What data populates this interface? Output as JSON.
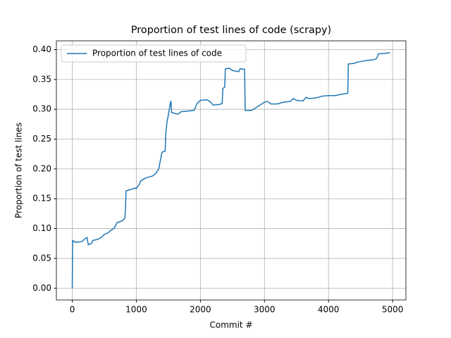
{
  "chart_data": {
    "type": "line",
    "title": "Proportion of test lines of code (scrapy)",
    "xlabel": "Commit #",
    "ylabel": "Proportion of test lines",
    "x": [
      0,
      5,
      50,
      150,
      200,
      230,
      250,
      300,
      320,
      400,
      450,
      500,
      560,
      600,
      650,
      700,
      780,
      820,
      830,
      840,
      900,
      980,
      1000,
      1050,
      1070,
      1150,
      1250,
      1300,
      1350,
      1400,
      1450,
      1460,
      1480,
      1500,
      1530,
      1540,
      1550,
      1600,
      1650,
      1700,
      1800,
      1900,
      1950,
      2000,
      2100,
      2150,
      2200,
      2300,
      2340,
      2350,
      2380,
      2390,
      2450,
      2500,
      2600,
      2620,
      2690,
      2700,
      2800,
      2900,
      3000,
      3050,
      3100,
      3200,
      3300,
      3400,
      3450,
      3500,
      3600,
      3650,
      3700,
      3800,
      3900,
      4000,
      4100,
      4200,
      4300,
      4310,
      4400,
      4450,
      4500,
      4600,
      4700,
      4750,
      4780,
      4900,
      4960
    ],
    "series": [
      {
        "name": "Proportion of test lines of code",
        "color": "#1f77b4",
        "values": [
          0,
          0.08,
          0.077,
          0.078,
          0.083,
          0.085,
          0.073,
          0.075,
          0.08,
          0.082,
          0.085,
          0.09,
          0.093,
          0.097,
          0.1,
          0.11,
          0.113,
          0.117,
          0.13,
          0.163,
          0.165,
          0.168,
          0.167,
          0.175,
          0.18,
          0.185,
          0.188,
          0.192,
          0.2,
          0.228,
          0.23,
          0.26,
          0.28,
          0.29,
          0.31,
          0.314,
          0.295,
          0.293,
          0.292,
          0.296,
          0.297,
          0.298,
          0.31,
          0.315,
          0.316,
          0.313,
          0.307,
          0.308,
          0.31,
          0.335,
          0.337,
          0.368,
          0.369,
          0.365,
          0.363,
          0.368,
          0.367,
          0.298,
          0.298,
          0.305,
          0.312,
          0.313,
          0.309,
          0.309,
          0.312,
          0.313,
          0.318,
          0.315,
          0.314,
          0.32,
          0.318,
          0.319,
          0.322,
          0.323,
          0.323,
          0.325,
          0.327,
          0.376,
          0.377,
          0.379,
          0.38,
          0.382,
          0.383,
          0.385,
          0.393,
          0.394,
          0.395
        ]
      }
    ],
    "xlim": [
      -248,
      5208
    ],
    "xticks": [
      0,
      1000,
      2000,
      3000,
      4000,
      5000
    ],
    "ylim": [
      -0.01975,
      0.41475
    ],
    "yticks": [
      {
        "value": 0,
        "label": "0.00"
      },
      {
        "value": 0.05,
        "label": "0.05"
      },
      {
        "value": 0.1,
        "label": "0.10"
      },
      {
        "value": 0.15,
        "label": "0.15"
      },
      {
        "value": 0.2,
        "label": "0.20"
      },
      {
        "value": 0.25,
        "label": "0.25"
      },
      {
        "value": 0.3,
        "label": "0.30"
      },
      {
        "value": 0.35,
        "label": "0.35"
      },
      {
        "value": 0.4,
        "label": "0.40"
      }
    ],
    "grid": true,
    "legend": "upper-left"
  }
}
